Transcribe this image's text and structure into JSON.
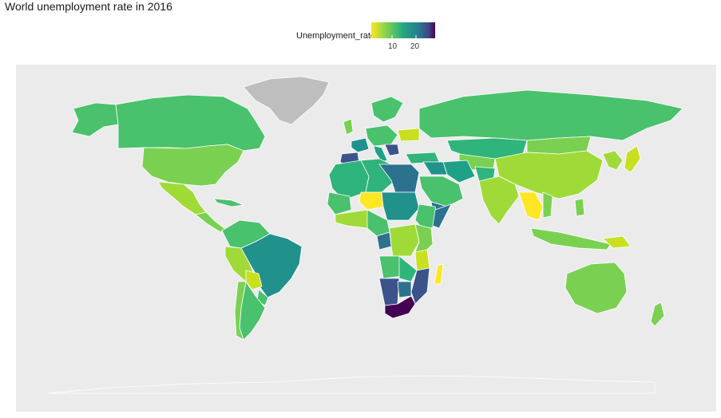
{
  "title": "World unemployment rate in 2016",
  "legend": {
    "title": "Unemployment_rate",
    "ticks": [
      "10",
      "20"
    ],
    "scale": "viridis (reversed)",
    "colors": [
      "#fde725",
      "#5ec962",
      "#21918c",
      "#3b528b",
      "#440154"
    ]
  },
  "map_colors": {
    "low": "#fde725",
    "low_mid": "#a0da39",
    "mid_low": "#7ad151",
    "mid": "#4ac16d",
    "mid_high": "#2fb47c",
    "high_mid": "#1fa187",
    "high": "#21918c",
    "higher": "#2c728e",
    "very_high": "#3b528b",
    "extreme": "#440154",
    "missing": "#bebebe",
    "background": "#ebebeb"
  }
}
